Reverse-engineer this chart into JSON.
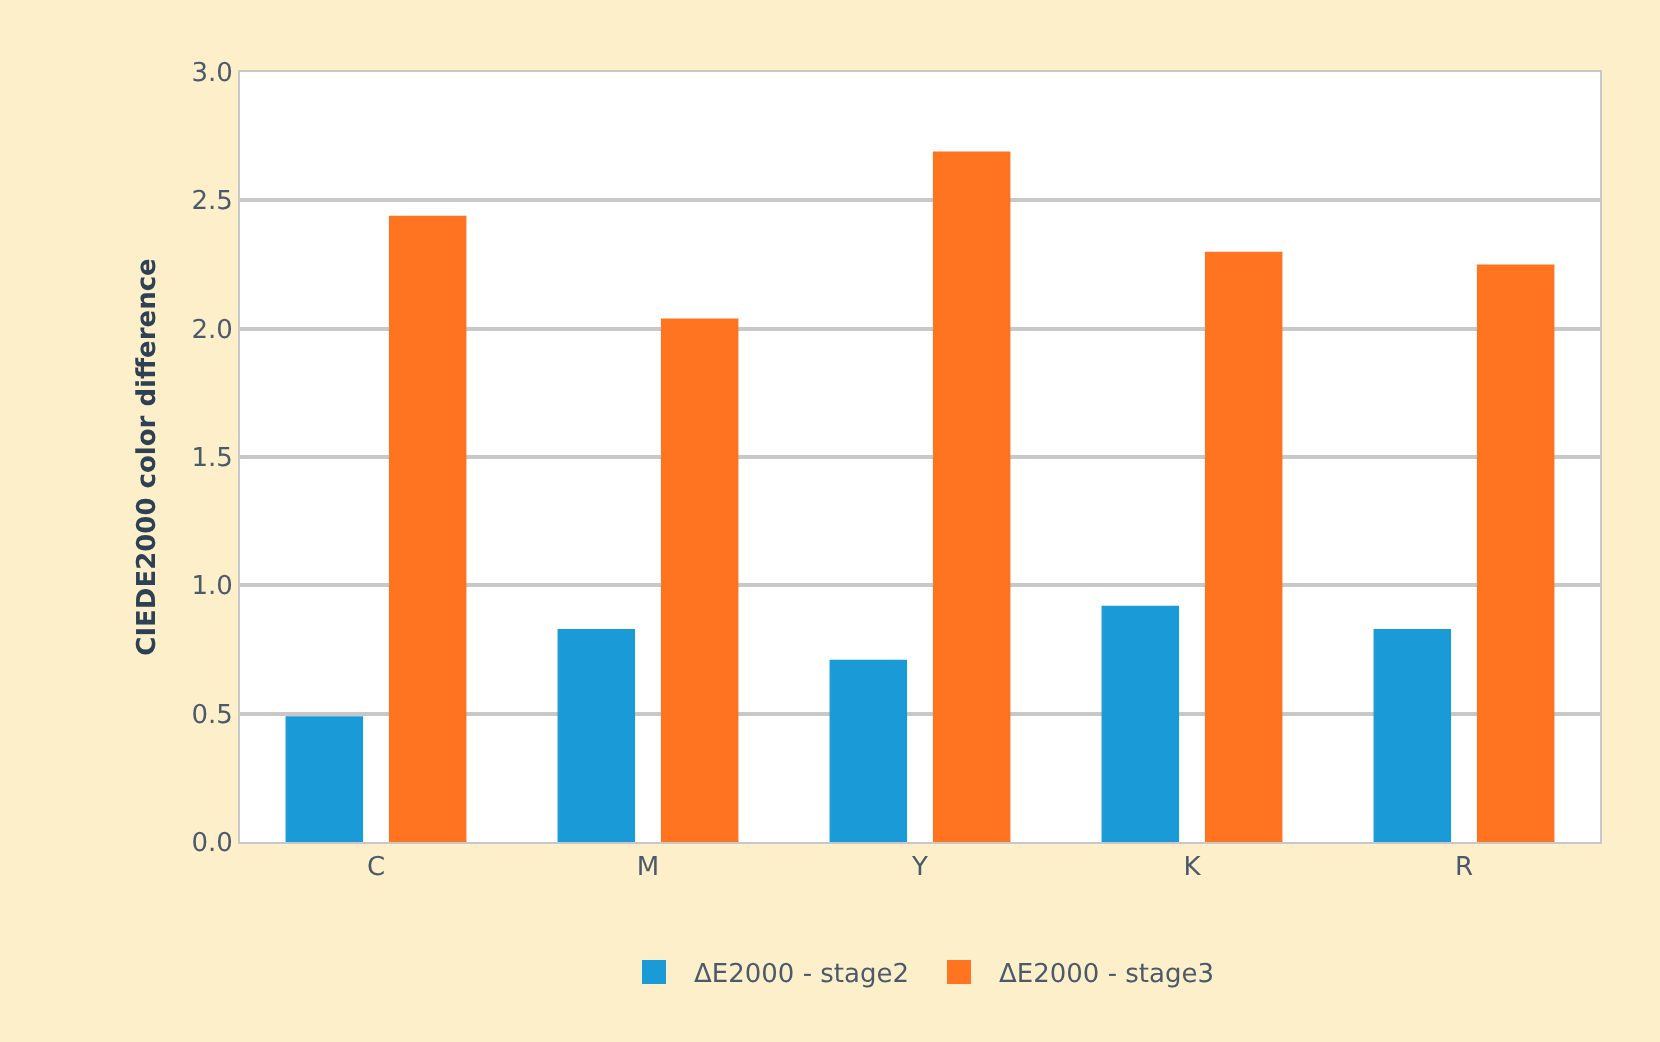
{
  "chart_data": {
    "type": "bar",
    "ylabel": "CIEDE2000 color difference",
    "categories": [
      "C",
      "M",
      "Y",
      "K",
      "R"
    ],
    "series": [
      {
        "name": "ΔE2000 - stage2",
        "color": "#1a9ad6",
        "values": [
          0.49,
          0.83,
          0.71,
          0.92,
          0.83
        ]
      },
      {
        "name": "ΔE2000 - stage3",
        "color": "#ff7420",
        "values": [
          2.44,
          2.04,
          2.69,
          2.3,
          2.25
        ]
      }
    ],
    "ylim": [
      0,
      3
    ],
    "yticks": [
      {
        "value": 0,
        "label": "0.0"
      },
      {
        "value": 0.5,
        "label": "0.5"
      },
      {
        "value": 1,
        "label": "1.0"
      },
      {
        "value": 1.5,
        "label": "1.5"
      },
      {
        "value": 2,
        "label": "2.0"
      },
      {
        "value": 2.5,
        "label": "2.5"
      },
      {
        "value": 3,
        "label": "3.0"
      }
    ],
    "grid": "y",
    "legend": "bottom"
  }
}
